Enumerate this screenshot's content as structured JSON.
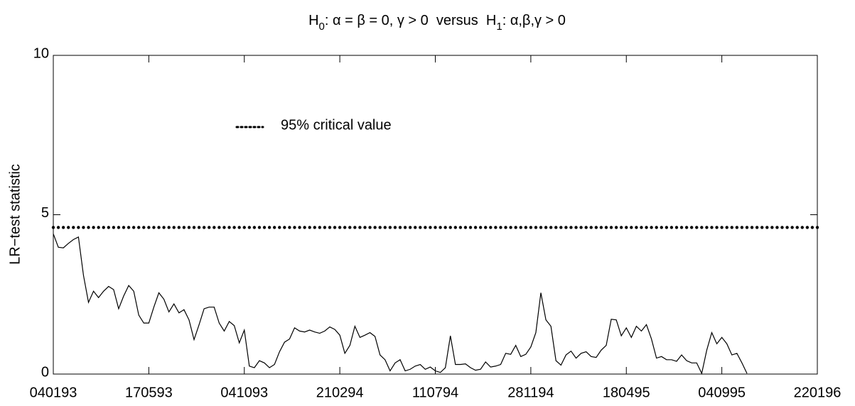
{
  "chart_data": {
    "type": "line",
    "title": [
      "H",
      "0",
      ": α = β = 0, γ > 0  versus  H",
      "1",
      ": α,β,γ > 0"
    ],
    "y_label": "LR−test statistic",
    "xlim": [
      0,
      152
    ],
    "xticks": [
      {
        "value": 0,
        "label": "040193"
      },
      {
        "value": 19,
        "label": "170593"
      },
      {
        "value": 38,
        "label": "041093"
      },
      {
        "value": 57,
        "label": "210294"
      },
      {
        "value": 76,
        "label": "110794"
      },
      {
        "value": 95,
        "label": "281194"
      },
      {
        "value": 114,
        "label": "180495"
      },
      {
        "value": 133,
        "label": "040995"
      },
      {
        "value": 152,
        "label": "220196"
      }
    ],
    "ylim": [
      0,
      10
    ],
    "yticks": [
      0,
      5,
      10
    ],
    "series": [
      {
        "color": "#000000",
        "style": "solid",
        "values": [
          4.4,
          3.98,
          3.96,
          4.1,
          4.22,
          4.3,
          3.1,
          2.25,
          2.6,
          2.4,
          2.6,
          2.75,
          2.65,
          2.05,
          2.45,
          2.78,
          2.6,
          1.85,
          1.6,
          1.6,
          2.1,
          2.55,
          2.35,
          1.95,
          2.2,
          1.92,
          2.02,
          1.7,
          1.08,
          1.55,
          2.05,
          2.1,
          2.1,
          1.6,
          1.35,
          1.65,
          1.52,
          0.98,
          1.38,
          0.25,
          0.2,
          0.42,
          0.35,
          0.2,
          0.3,
          0.7,
          1.0,
          1.1,
          1.45,
          1.35,
          1.32,
          1.38,
          1.32,
          1.28,
          1.35,
          1.48,
          1.4,
          1.22,
          0.65,
          0.9,
          1.5,
          1.15,
          1.22,
          1.3,
          1.18,
          0.6,
          0.45,
          0.1,
          0.35,
          0.45,
          0.1,
          0.15,
          0.25,
          0.3,
          0.15,
          0.22,
          0.1,
          0.05,
          0.2,
          1.2,
          0.3,
          0.3,
          0.32,
          0.2,
          0.12,
          0.15,
          0.38,
          0.22,
          0.25,
          0.3,
          0.65,
          0.62,
          0.9,
          0.55,
          0.62,
          0.85,
          1.3,
          2.55,
          1.7,
          1.5,
          0.42,
          0.28,
          0.6,
          0.72,
          0.5,
          0.65,
          0.7,
          0.55,
          0.52,
          0.75,
          0.9,
          1.72,
          1.7,
          1.2,
          1.45,
          1.15,
          1.5,
          1.35,
          1.55,
          1.1,
          0.5,
          0.55,
          0.45,
          0.45,
          0.4,
          0.6,
          0.42,
          0.35,
          0.35,
          0.02,
          0.75,
          1.3,
          0.95,
          1.15,
          0.95,
          0.6,
          0.65,
          0.35,
          0.02,
          null,
          null,
          null,
          null,
          null,
          null,
          null,
          null,
          null,
          null,
          null,
          null,
          null,
          null
        ]
      },
      {
        "name": "95% critical value",
        "color": "#000000",
        "style": "dotted",
        "values": [
          4.6,
          4.6,
          4.6,
          4.6,
          4.6,
          4.6,
          4.6,
          4.6,
          4.6,
          4.6,
          4.6,
          4.6,
          4.6,
          4.6,
          4.6,
          4.6,
          4.6,
          4.6,
          4.6,
          4.6,
          4.6,
          4.6,
          4.6,
          4.6,
          4.6,
          4.6,
          4.6,
          4.6,
          4.6,
          4.6,
          4.6,
          4.6,
          4.6,
          4.6,
          4.6,
          4.6,
          4.6,
          4.6,
          4.6,
          4.6,
          4.6,
          4.6,
          4.6,
          4.6,
          4.6,
          4.6,
          4.6,
          4.6,
          4.6,
          4.6,
          4.6,
          4.6,
          4.6,
          4.6,
          4.6,
          4.6,
          4.6,
          4.6,
          4.6,
          4.6,
          4.6,
          4.6,
          4.6,
          4.6,
          4.6,
          4.6,
          4.6,
          4.6,
          4.6,
          4.6,
          4.6,
          4.6,
          4.6,
          4.6,
          4.6,
          4.6,
          4.6,
          4.6,
          4.6,
          4.6,
          4.6,
          4.6,
          4.6,
          4.6,
          4.6,
          4.6,
          4.6,
          4.6,
          4.6,
          4.6,
          4.6,
          4.6,
          4.6,
          4.6,
          4.6,
          4.6,
          4.6,
          4.6,
          4.6,
          4.6,
          4.6,
          4.6,
          4.6,
          4.6,
          4.6,
          4.6,
          4.6,
          4.6,
          4.6,
          4.6,
          4.6,
          4.6,
          4.6,
          4.6,
          4.6,
          4.6,
          4.6,
          4.6,
          4.6,
          4.6,
          4.6,
          4.6,
          4.6,
          4.6,
          4.6,
          4.6,
          4.6,
          4.6,
          4.6,
          4.6,
          4.6,
          4.6,
          4.6,
          4.6,
          4.6,
          4.6,
          4.6,
          4.6,
          4.6,
          4.6,
          4.6,
          4.6,
          4.6,
          4.6,
          4.6,
          4.6,
          4.6,
          4.6,
          4.6,
          4.6,
          4.6,
          4.6,
          4.6
        ]
      }
    ],
    "legend": "inside"
  }
}
